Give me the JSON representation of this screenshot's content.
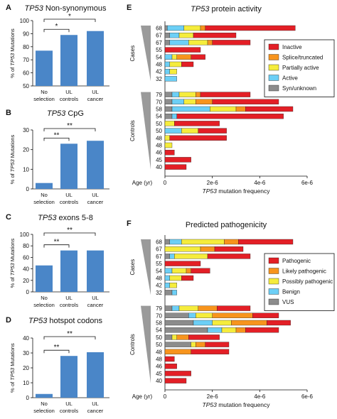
{
  "colors": {
    "bar_blue": "#4a86c8",
    "Inactive": "#e31f26",
    "Splice/truncated": "#f7941d",
    "Partially active": "#f5ec3c",
    "Active": "#6ccff6",
    "Syn/unknown": "#8c8c8c",
    "Pathogenic": "#e31f26",
    "Likely pathogenic": "#f7941d",
    "Possibly pathogenic": "#f5ec3c",
    "Benign": "#6ccff6",
    "VUS": "#8c8c8c"
  },
  "chart_data": [
    {
      "panel": "A",
      "type": "bar",
      "title_gene": "TP53",
      "title_rest": " Non-synonymous",
      "ylabel_pre": "% of ",
      "ylabel_gene": "TP53",
      "ylabel_post": " Mutations",
      "ylim": [
        50,
        100
      ],
      "yticks": [
        50,
        60,
        70,
        80,
        90,
        100
      ],
      "categories": [
        [
          "No",
          "selection"
        ],
        [
          "UL",
          "controls"
        ],
        [
          "UL",
          "cancer"
        ]
      ],
      "values": [
        77,
        89,
        92
      ],
      "significance": [
        {
          "from": 0,
          "to": 1,
          "label": "*"
        },
        {
          "from": 0,
          "to": 2,
          "label": "*"
        }
      ]
    },
    {
      "panel": "B",
      "type": "bar",
      "title_gene": "TP53",
      "title_rest": " CpG",
      "ylabel_pre": "% of ",
      "ylabel_gene": "TP53",
      "ylabel_post": " Mutations",
      "ylim": [
        0,
        30
      ],
      "yticks": [
        0,
        10,
        20,
        30
      ],
      "categories": [
        [
          "No",
          "selection"
        ],
        [
          "UL",
          "controls"
        ],
        [
          "UL",
          "cancer"
        ]
      ],
      "values": [
        3,
        23,
        24.5
      ],
      "significance": [
        {
          "from": 0,
          "to": 1,
          "label": "**"
        },
        {
          "from": 0,
          "to": 2,
          "label": "**"
        }
      ]
    },
    {
      "panel": "C",
      "type": "bar",
      "title_gene": "TP53",
      "title_rest": " exons 5-8",
      "ylabel_pre": "% of ",
      "ylabel_gene": "TP53",
      "ylabel_post": " Mutations",
      "ylim": [
        0,
        100
      ],
      "yticks": [
        0,
        20,
        40,
        60,
        80,
        100
      ],
      "categories": [
        [
          "No",
          "selection"
        ],
        [
          "UL",
          "controls"
        ],
        [
          "UL",
          "cancer"
        ]
      ],
      "values": [
        46,
        72,
        72
      ],
      "significance": [
        {
          "from": 0,
          "to": 1,
          "label": "**"
        },
        {
          "from": 0,
          "to": 2,
          "label": "**"
        }
      ]
    },
    {
      "panel": "D",
      "type": "bar",
      "title_gene": "TP53",
      "title_rest": " hotspot codons",
      "ylabel_pre": "% of ",
      "ylabel_gene": "TP53",
      "ylabel_post": " Mutations",
      "ylim": [
        0,
        40
      ],
      "yticks": [
        0,
        10,
        20,
        30,
        40
      ],
      "categories": [
        [
          "No",
          "selection"
        ],
        [
          "UL",
          "controls"
        ],
        [
          "UL",
          "cancer"
        ]
      ],
      "values": [
        2.5,
        28,
        30.5
      ],
      "significance": [
        {
          "from": 0,
          "to": 1,
          "label": "**"
        },
        {
          "from": 0,
          "to": 2,
          "label": "**"
        }
      ]
    },
    {
      "panel": "E",
      "type": "bar",
      "orientation": "horizontal-stacked",
      "title_gene": "TP53",
      "title_rest": " protein activity",
      "xlabel_gene": "TP53",
      "xlabel_rest": " mutation frequency",
      "age_label": "Age (yr)",
      "xlim": [
        0,
        6e-06
      ],
      "xticks": [
        {
          "v": 0,
          "label": "0"
        },
        {
          "v": 2e-06,
          "label": "2e-6"
        },
        {
          "v": 4e-06,
          "label": "4e-6"
        },
        {
          "v": 6e-06,
          "label": "6e-6"
        }
      ],
      "series_names": [
        "Syn/unknown",
        "Active",
        "Partially active",
        "Splice/truncated",
        "Inactive"
      ],
      "legend_order": [
        "Inactive",
        "Splice/truncated",
        "Partially active",
        "Active",
        "Syn/unknown"
      ],
      "legend_placement": "right",
      "groups": [
        {
          "name": "Cases",
          "rows": [
            {
              "age": "68",
              "segments": [
                1e-07,
                7e-07,
                7e-07,
                2e-07,
                3.8e-06
              ]
            },
            {
              "age": "67",
              "segments": [
                2e-07,
                4e-07,
                6e-07,
                0,
                1.8e-06
              ]
            },
            {
              "age": "67",
              "segments": [
                2e-07,
                8e-07,
                8e-07,
                2e-07,
                1.6e-06
              ]
            },
            {
              "age": "55",
              "segments": [
                0,
                0,
                0,
                0,
                1.5e-06
              ]
            },
            {
              "age": "54",
              "segments": [
                0,
                3e-07,
                2e-07,
                6e-07,
                6e-07
              ]
            },
            {
              "age": "48",
              "segments": [
                0,
                2e-07,
                5e-07,
                0,
                5e-07
              ]
            },
            {
              "age": "42",
              "segments": [
                0,
                2e-07,
                3e-07,
                0,
                0
              ]
            },
            {
              "age": "32",
              "segments": [
                0,
                5e-07,
                0,
                0,
                0
              ]
            }
          ]
        },
        {
          "name": "Controls",
          "rows": [
            {
              "age": "79",
              "segments": [
                3e-07,
                3e-07,
                7e-07,
                2e-07,
                2.1e-06
              ]
            },
            {
              "age": "70",
              "segments": [
                3e-07,
                5e-07,
                5e-07,
                7e-07,
                2.8e-06
              ]
            },
            {
              "age": "58",
              "segments": [
                3e-07,
                1.6e-06,
                1.1e-06,
                4e-07,
                2e-06
              ]
            },
            {
              "age": "54",
              "segments": [
                3e-07,
                2e-07,
                0,
                0,
                4.5e-06
              ]
            },
            {
              "age": "50",
              "segments": [
                0,
                0,
                4e-07,
                0,
                1.9e-06
              ]
            },
            {
              "age": "50",
              "segments": [
                0,
                7e-07,
                7e-07,
                0,
                1.2e-06
              ]
            },
            {
              "age": "48",
              "segments": [
                0,
                0,
                2e-07,
                0,
                2.4e-06
              ]
            },
            {
              "age": "48",
              "segments": [
                0,
                0,
                3e-07,
                0,
                0
              ]
            },
            {
              "age": "46",
              "segments": [
                0,
                0,
                0,
                0,
                4e-07
              ]
            },
            {
              "age": "45",
              "segments": [
                0,
                0,
                0,
                0,
                1.1e-06
              ]
            },
            {
              "age": "40",
              "segments": [
                0,
                0,
                0,
                0,
                9e-07
              ]
            }
          ]
        }
      ]
    },
    {
      "panel": "F",
      "type": "bar",
      "orientation": "horizontal-stacked",
      "title_gene": "",
      "title_rest": "Predicted pathogenicity",
      "xlabel_gene": "TP53",
      "xlabel_rest": " mutation frequency",
      "age_label": "Age (yr)",
      "xlim": [
        0,
        6e-06
      ],
      "xticks": [
        {
          "v": 0,
          "label": "0"
        },
        {
          "v": 2e-06,
          "label": "2e-6"
        },
        {
          "v": 4e-06,
          "label": "4e-6"
        },
        {
          "v": 6e-06,
          "label": "6e-6"
        }
      ],
      "series_names": [
        "VUS",
        "Benign",
        "Possibly pathogenic",
        "Likely pathogenic",
        "Pathogenic"
      ],
      "legend_order": [
        "Pathogenic",
        "Likely pathogenic",
        "Possibly pathogenic",
        "Benign",
        "VUS"
      ],
      "legend_placement": "right",
      "groups": [
        {
          "name": "Cases",
          "rows": [
            {
              "age": "68",
              "segments": [
                2e-07,
                5e-07,
                1.8e-06,
                6e-07,
                2.3e-06
              ]
            },
            {
              "age": "67",
              "segments": [
                0,
                0,
                1.5e-06,
                6e-07,
                1.2e-06
              ]
            },
            {
              "age": "67",
              "segments": [
                2e-07,
                2e-07,
                1.4e-06,
                0,
                1.8e-06
              ]
            },
            {
              "age": "55",
              "segments": [
                0,
                0,
                0,
                0,
                1.5e-06
              ]
            },
            {
              "age": "54",
              "segments": [
                0,
                3e-07,
                6e-07,
                2e-07,
                8e-07
              ]
            },
            {
              "age": "48",
              "segments": [
                0,
                2e-07,
                5e-07,
                0,
                5e-07
              ]
            },
            {
              "age": "42",
              "segments": [
                0,
                2e-07,
                3e-07,
                0,
                0
              ]
            },
            {
              "age": "32",
              "segments": [
                3e-07,
                2e-07,
                0,
                0,
                0
              ]
            }
          ]
        },
        {
          "name": "Controls",
          "rows": [
            {
              "age": "79",
              "segments": [
                3e-07,
                3e-07,
                8e-07,
                8e-07,
                1.4e-06
              ]
            },
            {
              "age": "70",
              "segments": [
                1e-06,
                3e-07,
                7e-07,
                1.7e-06,
                1.1e-06
              ]
            },
            {
              "age": "58",
              "segments": [
                1.2e-06,
                8e-07,
                8e-07,
                1.5e-06,
                1e-06
              ]
            },
            {
              "age": "54",
              "segments": [
                1.8e-06,
                6e-07,
                6e-07,
                4e-07,
                1.4e-06
              ]
            },
            {
              "age": "50",
              "segments": [
                3e-07,
                0,
                2e-07,
                5e-07,
                1.3e-06
              ]
            },
            {
              "age": "50",
              "segments": [
                1.1e-06,
                0,
                2e-07,
                4e-07,
                1e-06
              ]
            },
            {
              "age": "48",
              "segments": [
                0,
                0,
                0,
                1.1e-06,
                1.6e-06
              ]
            },
            {
              "age": "48",
              "segments": [
                0,
                0,
                0,
                0,
                4e-07
              ]
            },
            {
              "age": "46",
              "segments": [
                0,
                0,
                0,
                0,
                5e-07
              ]
            },
            {
              "age": "45",
              "segments": [
                0,
                0,
                0,
                0,
                1.1e-06
              ]
            },
            {
              "age": "40",
              "segments": [
                0,
                0,
                0,
                0,
                9e-07
              ]
            }
          ]
        }
      ]
    }
  ]
}
